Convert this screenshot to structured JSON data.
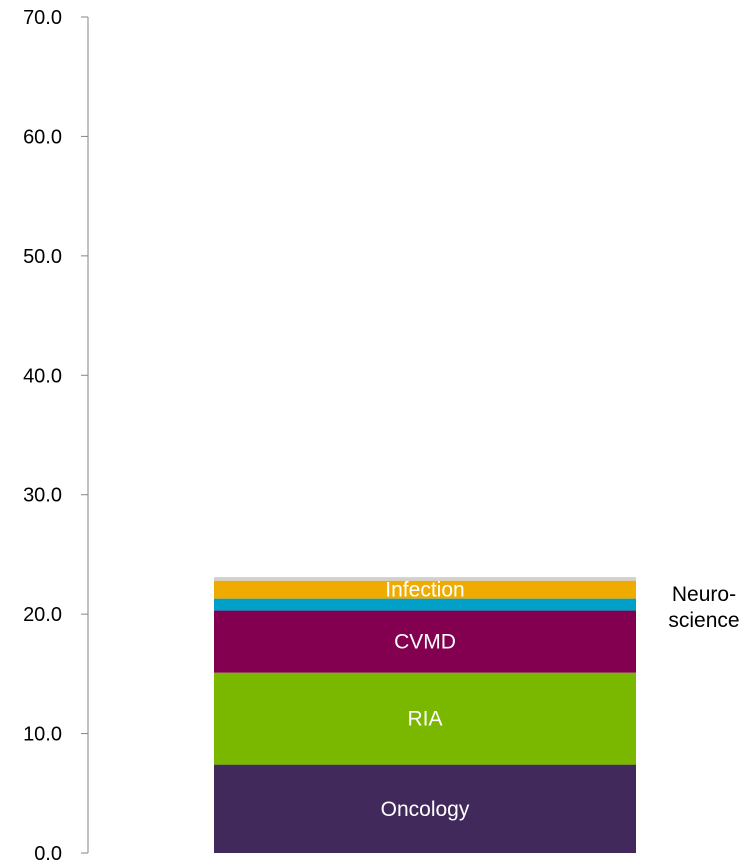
{
  "chart_data": {
    "type": "bar",
    "stacked": true,
    "title": "",
    "xlabel": "",
    "ylabel": "",
    "ylim": [
      0,
      70
    ],
    "y_ticks": [
      "0.0",
      "10.0",
      "20.0",
      "30.0",
      "40.0",
      "50.0",
      "60.0",
      "70.0"
    ],
    "grid": false,
    "legend": "none",
    "categories": [
      ""
    ],
    "series": [
      {
        "name": "Oncology",
        "values": [
          7.4
        ],
        "color": "#42295c",
        "label_inside": true
      },
      {
        "name": "RIA",
        "values": [
          7.7
        ],
        "color": "#7ab800",
        "label_inside": true
      },
      {
        "name": "CVMD",
        "values": [
          5.2
        ],
        "color": "#830051",
        "label_inside": true
      },
      {
        "name": "Neuro-\nscience",
        "values": [
          1.0
        ],
        "color": "#00a0c8",
        "label_inside": false
      },
      {
        "name": "Infection",
        "values": [
          1.5
        ],
        "color": "#f0ab00",
        "label_inside": true
      },
      {
        "name": "",
        "values": [
          0.3
        ],
        "color": "#d0d0d0",
        "label_inside": false
      }
    ]
  }
}
